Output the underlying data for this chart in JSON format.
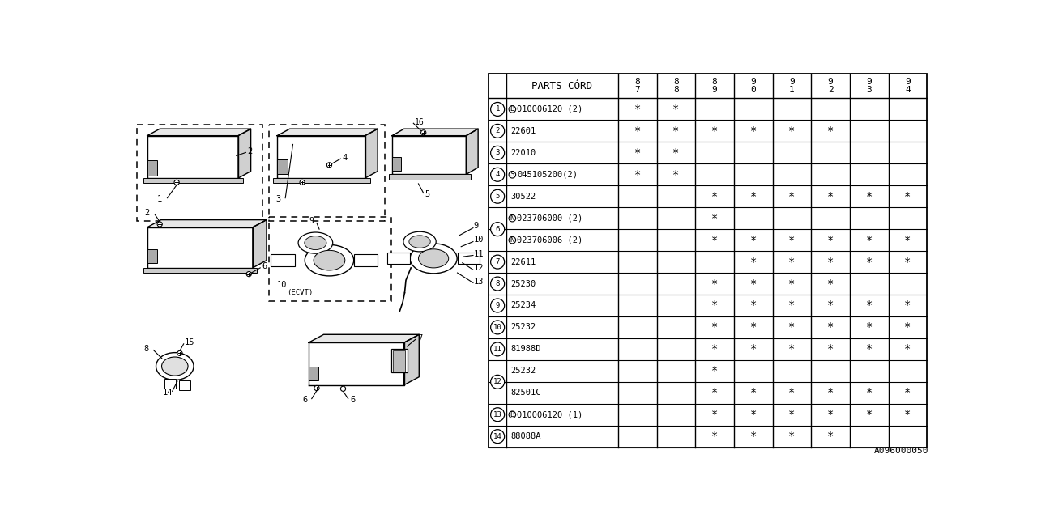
{
  "bg_color": "#ffffff",
  "line_color": "#000000",
  "text_color": "#000000",
  "ref_code": "A096000050",
  "year_labels": [
    "8\n7",
    "8\n8",
    "8\n9",
    "9\n0",
    "9\n1",
    "9\n2",
    "9\n3",
    "9\n4"
  ],
  "header_text": "PARTS CÓRD",
  "rows": [
    {
      "num": "1",
      "prefix": "B",
      "part": "010006120 (2)",
      "marks": [
        1,
        1,
        0,
        0,
        0,
        0,
        0,
        0
      ]
    },
    {
      "num": "2",
      "prefix": "",
      "part": "22601",
      "marks": [
        1,
        1,
        1,
        1,
        1,
        1,
        0,
        0
      ]
    },
    {
      "num": "3",
      "prefix": "",
      "part": "22010",
      "marks": [
        1,
        1,
        0,
        0,
        0,
        0,
        0,
        0
      ]
    },
    {
      "num": "4",
      "prefix": "S",
      "part": "045105200(2)",
      "marks": [
        1,
        1,
        0,
        0,
        0,
        0,
        0,
        0
      ]
    },
    {
      "num": "5",
      "prefix": "",
      "part": "30522",
      "marks": [
        0,
        0,
        1,
        1,
        1,
        1,
        1,
        1
      ]
    },
    {
      "num": "6",
      "prefix": "N",
      "part": "023706000 (2)",
      "marks": [
        0,
        0,
        1,
        0,
        0,
        0,
        0,
        0
      ]
    },
    {
      "num": "6",
      "prefix": "N",
      "part": "023706006 (2)",
      "marks": [
        0,
        0,
        1,
        1,
        1,
        1,
        1,
        1
      ]
    },
    {
      "num": "7",
      "prefix": "",
      "part": "22611",
      "marks": [
        0,
        0,
        0,
        1,
        1,
        1,
        1,
        1
      ]
    },
    {
      "num": "8",
      "prefix": "",
      "part": "25230",
      "marks": [
        0,
        0,
        1,
        1,
        1,
        1,
        0,
        0
      ]
    },
    {
      "num": "9",
      "prefix": "",
      "part": "25234",
      "marks": [
        0,
        0,
        1,
        1,
        1,
        1,
        1,
        1
      ]
    },
    {
      "num": "10",
      "prefix": "",
      "part": "25232",
      "marks": [
        0,
        0,
        1,
        1,
        1,
        1,
        1,
        1
      ]
    },
    {
      "num": "11",
      "prefix": "",
      "part": "81988D",
      "marks": [
        0,
        0,
        1,
        1,
        1,
        1,
        1,
        1
      ]
    },
    {
      "num": "12",
      "prefix": "",
      "part": "25232",
      "marks": [
        0,
        0,
        1,
        0,
        0,
        0,
        0,
        0
      ]
    },
    {
      "num": "12",
      "prefix": "",
      "part": "82501C",
      "marks": [
        0,
        0,
        1,
        1,
        1,
        1,
        1,
        1
      ]
    },
    {
      "num": "13",
      "prefix": "B",
      "part": "010006120 (1)",
      "marks": [
        0,
        0,
        1,
        1,
        1,
        1,
        1,
        1
      ]
    },
    {
      "num": "14",
      "prefix": "",
      "part": "88088A",
      "marks": [
        0,
        0,
        1,
        1,
        1,
        1,
        0,
        0
      ]
    }
  ]
}
